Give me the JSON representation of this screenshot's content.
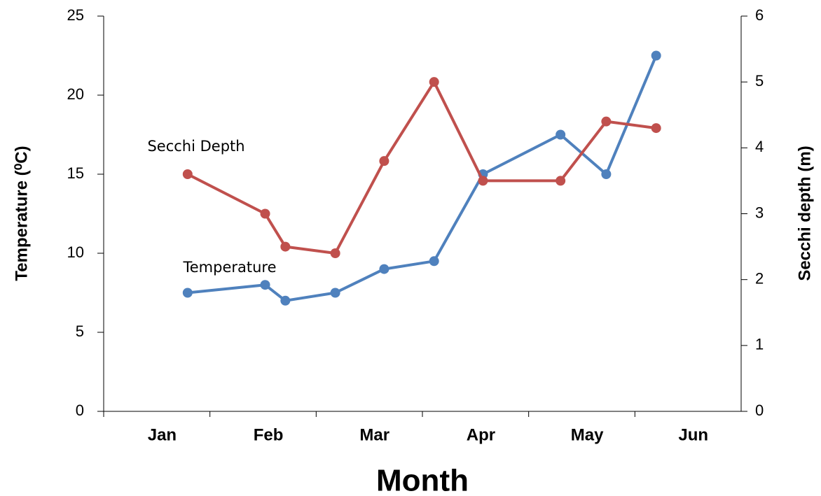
{
  "chart_data": {
    "type": "line",
    "categories": [
      "Jan",
      "Feb",
      "Mar",
      "Apr",
      "May",
      "Jun"
    ],
    "xlim": [
      0,
      6
    ],
    "x": [
      0.79,
      1.52,
      1.71,
      2.18,
      2.64,
      3.11,
      3.57,
      4.3,
      4.73,
      5.2
    ],
    "x_title": "Month",
    "y_title": "Temperature (⁰C)",
    "y2_title": "Secchi depth (m)",
    "ylim": [
      0,
      25
    ],
    "yticks": [
      0,
      5,
      10,
      15,
      20,
      25
    ],
    "y2lim": [
      0,
      6
    ],
    "y2ticks": [
      0,
      1,
      2,
      3,
      4,
      5,
      6
    ],
    "series": [
      {
        "name": "Temperature",
        "color": "#4f81bd",
        "values": [
          7.5,
          8,
          7,
          7.5,
          9,
          9.5,
          15,
          17.5,
          15,
          22.5
        ]
      },
      {
        "name": "Secchi Depth",
        "color": "#c0504d",
        "axis": "y2",
        "values": [
          3.6,
          3.0,
          2.5,
          2.4,
          3.8,
          5.0,
          3.5,
          3.5,
          4.4,
          4.3
        ]
      }
    ]
  }
}
